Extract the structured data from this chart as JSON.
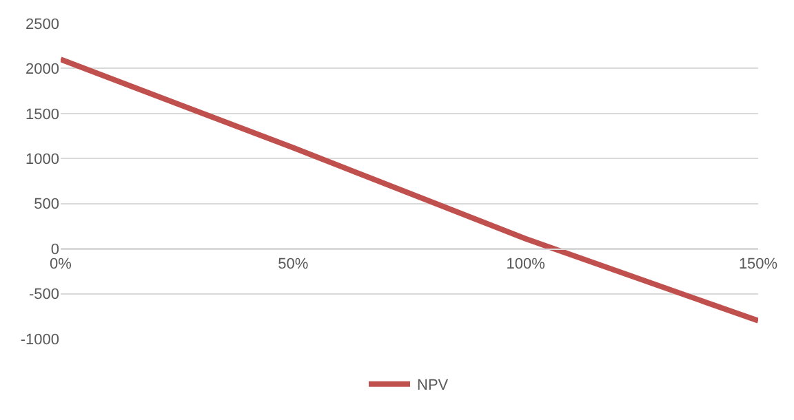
{
  "chart_data": {
    "type": "line",
    "x": [
      0,
      0.5,
      1.0,
      1.5
    ],
    "series": [
      {
        "name": "NPV",
        "color": "#c0504d",
        "values": [
          2100,
          1120,
          110,
          -800
        ]
      }
    ],
    "xlim": [
      0,
      1.5
    ],
    "xticks": [
      {
        "value": 0,
        "label": "0%"
      },
      {
        "value": 0.5,
        "label": "50%"
      },
      {
        "value": 1.0,
        "label": "100%"
      },
      {
        "value": 1.5,
        "label": "150%"
      }
    ],
    "ylim": [
      -1000,
      2500
    ],
    "yticks": [
      -1000,
      -500,
      0,
      500,
      1000,
      1500,
      2000,
      2500
    ],
    "grid": "y",
    "legend": "bottom",
    "marker": "none",
    "line_style": "solid"
  }
}
